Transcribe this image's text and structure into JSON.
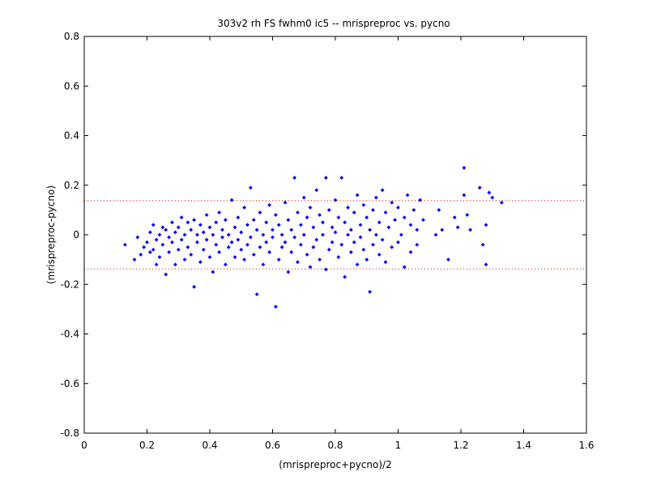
{
  "chart_data": {
    "type": "scatter",
    "title": "303v2 rh FS fwhm0 ic5 -- mrispreproc vs. pycno",
    "xlabel": "(mrispreproc+pycno)/2",
    "ylabel": "(mrispreproc-pycno)",
    "xlim": [
      0,
      1.6
    ],
    "ylim": [
      -0.8,
      0.8
    ],
    "xticks": [
      "0",
      "0.2",
      "0.4",
      "0.6",
      "0.8",
      "1",
      "1.2",
      "1.4",
      "1.6"
    ],
    "yticks": [
      "-0.8",
      "-0.6",
      "-0.4",
      "-0.2",
      "0",
      "0.2",
      "0.4",
      "0.6",
      "0.8"
    ],
    "grid": false,
    "marker_color": "#0000ff",
    "reference_lines": [
      {
        "y": 0.138,
        "color": "#ff0000",
        "style": "dotted"
      },
      {
        "y": -0.138,
        "color": "#ff0000",
        "style": "dotted"
      }
    ],
    "series": [
      {
        "points": [
          [
            0.13,
            -0.04
          ],
          [
            0.16,
            -0.1
          ],
          [
            0.17,
            -0.01
          ],
          [
            0.18,
            -0.08
          ],
          [
            0.19,
            -0.05
          ],
          [
            0.2,
            -0.03
          ],
          [
            0.21,
            0.01
          ],
          [
            0.21,
            -0.07
          ],
          [
            0.22,
            0.04
          ],
          [
            0.22,
            -0.06
          ],
          [
            0.23,
            -0.02
          ],
          [
            0.23,
            -0.12
          ],
          [
            0.24,
            0.0
          ],
          [
            0.24,
            -0.09
          ],
          [
            0.25,
            0.03
          ],
          [
            0.25,
            -0.04
          ],
          [
            0.26,
            -0.16
          ],
          [
            0.26,
            0.02
          ],
          [
            0.27,
            -0.01
          ],
          [
            0.27,
            -0.07
          ],
          [
            0.28,
            0.05
          ],
          [
            0.28,
            -0.03
          ],
          [
            0.29,
            0.01
          ],
          [
            0.29,
            -0.12
          ],
          [
            0.3,
            0.03
          ],
          [
            0.3,
            -0.06
          ],
          [
            0.31,
            0.07
          ],
          [
            0.31,
            -0.02
          ],
          [
            0.32,
            0.0
          ],
          [
            0.32,
            -0.1
          ],
          [
            0.33,
            0.05
          ],
          [
            0.33,
            -0.05
          ],
          [
            0.34,
            0.02
          ],
          [
            0.34,
            -0.08
          ],
          [
            0.35,
            0.06
          ],
          [
            0.35,
            -0.21
          ],
          [
            0.36,
            0.0
          ],
          [
            0.36,
            -0.03
          ],
          [
            0.37,
            0.04
          ],
          [
            0.37,
            -0.11
          ],
          [
            0.38,
            0.01
          ],
          [
            0.38,
            -0.06
          ],
          [
            0.39,
            0.08
          ],
          [
            0.39,
            -0.02
          ],
          [
            0.4,
            0.03
          ],
          [
            0.4,
            -0.09
          ],
          [
            0.41,
            0.0
          ],
          [
            0.41,
            -0.15
          ],
          [
            0.42,
            0.05
          ],
          [
            0.42,
            -0.04
          ],
          [
            0.43,
            0.09
          ],
          [
            0.43,
            -0.07
          ],
          [
            0.44,
            0.02
          ],
          [
            0.44,
            -0.01
          ],
          [
            0.45,
            0.06
          ],
          [
            0.45,
            -0.12
          ],
          [
            0.46,
            0.0
          ],
          [
            0.46,
            -0.05
          ],
          [
            0.47,
            0.14
          ],
          [
            0.47,
            -0.03
          ],
          [
            0.48,
            0.03
          ],
          [
            0.48,
            -0.09
          ],
          [
            0.49,
            0.07
          ],
          [
            0.49,
            -0.02
          ],
          [
            0.5,
            0.01
          ],
          [
            0.5,
            -0.06
          ],
          [
            0.51,
            0.11
          ],
          [
            0.51,
            -0.1
          ],
          [
            0.52,
            0.04
          ],
          [
            0.52,
            -0.04
          ],
          [
            0.53,
            0.19
          ],
          [
            0.53,
            -0.01
          ],
          [
            0.54,
            0.06
          ],
          [
            0.54,
            -0.08
          ],
          [
            0.55,
            0.02
          ],
          [
            0.55,
            -0.24
          ],
          [
            0.56,
            0.09
          ],
          [
            0.56,
            -0.05
          ],
          [
            0.57,
            0.0
          ],
          [
            0.57,
            -0.12
          ],
          [
            0.58,
            0.05
          ],
          [
            0.58,
            -0.03
          ],
          [
            0.59,
            0.12
          ],
          [
            0.59,
            -0.07
          ],
          [
            0.6,
            0.02
          ],
          [
            0.6,
            -0.01
          ],
          [
            0.61,
            0.08
          ],
          [
            0.61,
            -0.29
          ],
          [
            0.62,
            0.04
          ],
          [
            0.62,
            -0.1
          ],
          [
            0.63,
            0.0
          ],
          [
            0.63,
            -0.05
          ],
          [
            0.64,
            0.13
          ],
          [
            0.64,
            -0.03
          ],
          [
            0.65,
            0.06
          ],
          [
            0.65,
            -0.15
          ],
          [
            0.66,
            0.02
          ],
          [
            0.66,
            -0.07
          ],
          [
            0.67,
            0.23
          ],
          [
            0.67,
            -0.01
          ],
          [
            0.68,
            0.09
          ],
          [
            0.68,
            -0.11
          ],
          [
            0.69,
            0.04
          ],
          [
            0.69,
            -0.04
          ],
          [
            0.7,
            0.15
          ],
          [
            0.7,
            0.0
          ],
          [
            0.71,
            0.07
          ],
          [
            0.71,
            -0.08
          ],
          [
            0.72,
            0.11
          ],
          [
            0.72,
            -0.13
          ],
          [
            0.73,
            0.03
          ],
          [
            0.73,
            -0.05
          ],
          [
            0.74,
            0.18
          ],
          [
            0.74,
            -0.02
          ],
          [
            0.75,
            0.08
          ],
          [
            0.75,
            -0.1
          ],
          [
            0.76,
            0.05
          ],
          [
            0.76,
            0.0
          ],
          [
            0.77,
            0.23
          ],
          [
            0.77,
            -0.14
          ],
          [
            0.78,
            0.1
          ],
          [
            0.78,
            -0.06
          ],
          [
            0.79,
            0.03
          ],
          [
            0.79,
            -0.03
          ],
          [
            0.8,
            0.14
          ],
          [
            0.8,
            0.01
          ],
          [
            0.81,
            0.07
          ],
          [
            0.81,
            -0.09
          ],
          [
            0.82,
            0.23
          ],
          [
            0.82,
            -0.04
          ],
          [
            0.83,
            0.05
          ],
          [
            0.83,
            -0.17
          ],
          [
            0.84,
            0.11
          ],
          [
            0.84,
            0.0
          ],
          [
            0.85,
            0.02
          ],
          [
            0.85,
            -0.07
          ],
          [
            0.86,
            0.09
          ],
          [
            0.86,
            -0.03
          ],
          [
            0.87,
            0.16
          ],
          [
            0.87,
            -0.12
          ],
          [
            0.88,
            0.04
          ],
          [
            0.88,
            -0.01
          ],
          [
            0.89,
            0.12
          ],
          [
            0.89,
            -0.06
          ],
          [
            0.9,
            0.07
          ],
          [
            0.9,
            -0.1
          ],
          [
            0.91,
            0.02
          ],
          [
            0.91,
            -0.23
          ],
          [
            0.92,
            0.1
          ],
          [
            0.92,
            -0.04
          ],
          [
            0.93,
            0.15
          ],
          [
            0.93,
            0.0
          ],
          [
            0.94,
            0.05
          ],
          [
            0.94,
            -0.08
          ],
          [
            0.95,
            0.18
          ],
          [
            0.95,
            -0.02
          ],
          [
            0.96,
            0.09
          ],
          [
            0.96,
            -0.11
          ],
          [
            0.97,
            0.03
          ],
          [
            0.98,
            0.13
          ],
          [
            0.98,
            -0.05
          ],
          [
            0.99,
            0.06
          ],
          [
            1.0,
            0.11
          ],
          [
            1.0,
            -0.03
          ],
          [
            1.01,
            0.0
          ],
          [
            1.02,
            0.07
          ],
          [
            1.02,
            -0.13
          ],
          [
            1.03,
            0.16
          ],
          [
            1.04,
            0.04
          ],
          [
            1.04,
            -0.07
          ],
          [
            1.05,
            0.1
          ],
          [
            1.06,
            0.02
          ],
          [
            1.06,
            -0.04
          ],
          [
            1.07,
            0.14
          ],
          [
            1.08,
            0.06
          ],
          [
            1.12,
            0.0
          ],
          [
            1.13,
            0.1
          ],
          [
            1.14,
            0.02
          ],
          [
            1.16,
            -0.1
          ],
          [
            1.18,
            0.07
          ],
          [
            1.19,
            0.03
          ],
          [
            1.21,
            0.16
          ],
          [
            1.21,
            0.27
          ],
          [
            1.22,
            0.08
          ],
          [
            1.23,
            0.02
          ],
          [
            1.26,
            0.19
          ],
          [
            1.27,
            -0.04
          ],
          [
            1.28,
            0.04
          ],
          [
            1.28,
            -0.12
          ],
          [
            1.29,
            0.17
          ],
          [
            1.3,
            0.15
          ],
          [
            1.33,
            0.13
          ]
        ]
      }
    ]
  }
}
